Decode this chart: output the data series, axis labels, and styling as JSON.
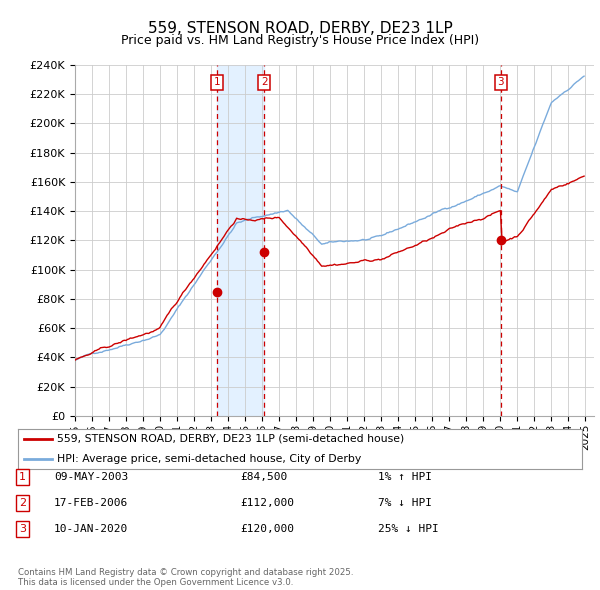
{
  "title": "559, STENSON ROAD, DERBY, DE23 1LP",
  "subtitle": "Price paid vs. HM Land Registry's House Price Index (HPI)",
  "ylim": [
    0,
    240000
  ],
  "yticks": [
    0,
    20000,
    40000,
    60000,
    80000,
    100000,
    120000,
    140000,
    160000,
    180000,
    200000,
    220000,
    240000
  ],
  "ytick_labels": [
    "£0",
    "£20K",
    "£40K",
    "£60K",
    "£80K",
    "£100K",
    "£120K",
    "£140K",
    "£160K",
    "£180K",
    "£200K",
    "£220K",
    "£240K"
  ],
  "background_color": "#ffffff",
  "grid_color": "#cccccc",
  "hpi_color": "#7aabdc",
  "price_color": "#cc0000",
  "shade_color": "#ddeeff",
  "dashed_line_color": "#cc0000",
  "legend_label_price": "559, STENSON ROAD, DERBY, DE23 1LP (semi-detached house)",
  "legend_label_hpi": "HPI: Average price, semi-detached house, City of Derby",
  "sales": [
    {
      "label": "1",
      "date": "09-MAY-2003",
      "price": 84500,
      "year": 2003.36,
      "relation": "1% ↑ HPI"
    },
    {
      "label": "2",
      "date": "17-FEB-2006",
      "price": 112000,
      "year": 2006.12,
      "relation": "7% ↓ HPI"
    },
    {
      "label": "3",
      "date": "10-JAN-2020",
      "price": 120000,
      "year": 2020.03,
      "relation": "25% ↓ HPI"
    }
  ],
  "footer_line1": "Contains HM Land Registry data © Crown copyright and database right 2025.",
  "footer_line2": "This data is licensed under the Open Government Licence v3.0."
}
